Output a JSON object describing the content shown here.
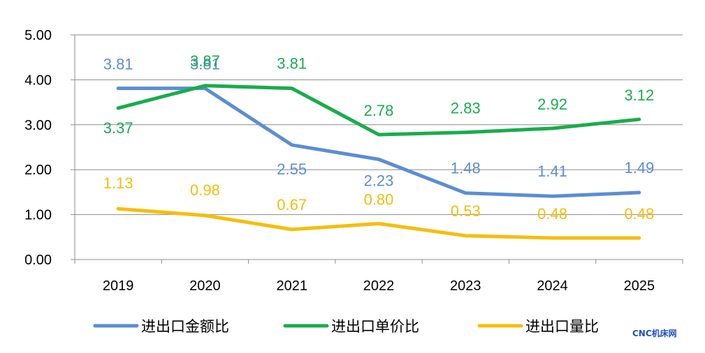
{
  "chart_data": {
    "type": "line",
    "categories": [
      "2019",
      "2020",
      "2021",
      "2022",
      "2023",
      "2024",
      "2025"
    ],
    "ylim": [
      0,
      5
    ],
    "yticks": [
      "0.00",
      "1.00",
      "2.00",
      "3.00",
      "4.00",
      "5.00"
    ],
    "grid": true,
    "legend_position": "bottom",
    "series": [
      {
        "name": "进出口金额比",
        "color": "#5B8ED2",
        "values": [
          3.81,
          3.81,
          2.55,
          2.23,
          1.48,
          1.41,
          1.49
        ],
        "labels": [
          "3.81",
          "3.81",
          "2.55",
          "2.23",
          "1.48",
          "1.41",
          "1.49"
        ]
      },
      {
        "name": "进出口单价比",
        "color": "#1AAC4C",
        "values": [
          3.37,
          3.87,
          3.81,
          2.78,
          2.83,
          2.92,
          3.12
        ],
        "labels": [
          "3.37",
          "3.87",
          "3.81",
          "2.78",
          "2.83",
          "2.92",
          "3.12"
        ]
      },
      {
        "name": "进出口量比",
        "color": "#F5BE0C",
        "values": [
          1.13,
          0.98,
          0.67,
          0.8,
          0.53,
          0.48,
          0.48
        ],
        "labels": [
          "1.13",
          "0.98",
          "0.67",
          "0.80",
          "0.53",
          "0.48",
          "0.48"
        ]
      }
    ]
  },
  "watermark": {
    "text": "CNC机床网",
    "color": "#1E4FC4"
  }
}
